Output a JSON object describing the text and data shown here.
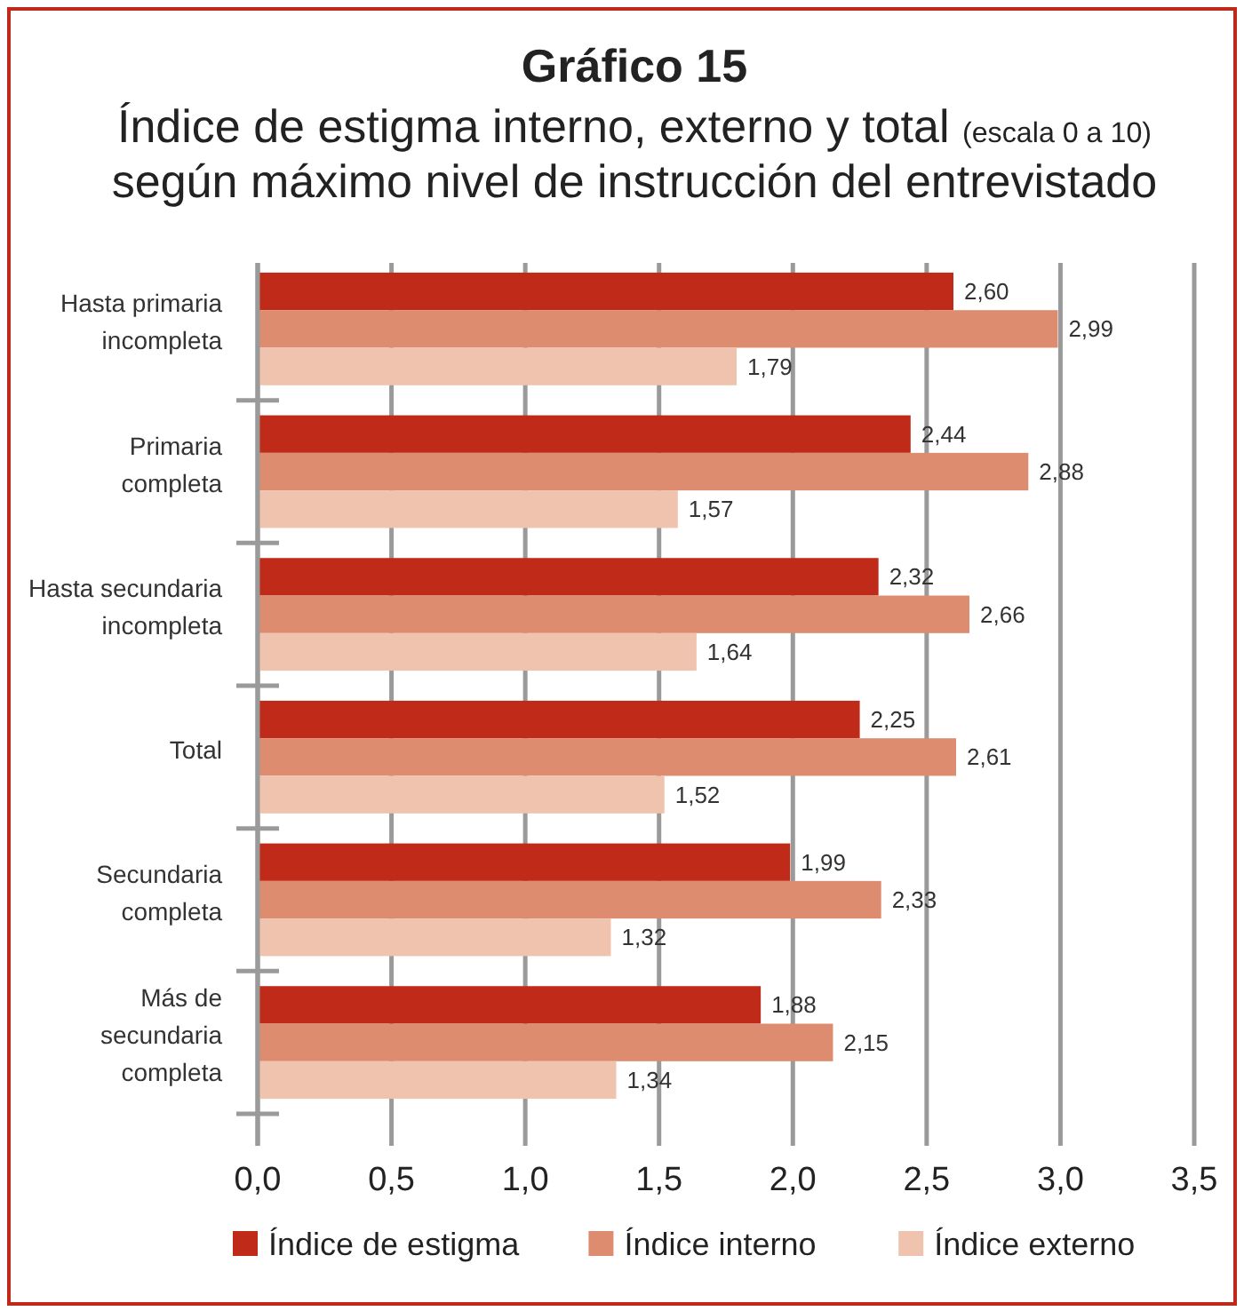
{
  "chart_data": {
    "type": "bar",
    "orientation": "horizontal",
    "title": "Gráfico 15",
    "subtitle": "Índice de estigma interno, externo y total (escala 0 a 10) según máximo nivel de instrucción del entrevistado",
    "categories": [
      "Hasta primaria incompleta",
      "Primaria completa",
      "Hasta secundaria incompleta",
      "Total",
      "Secundaria completa",
      "Más de secundaria completa"
    ],
    "series": [
      {
        "name": "Índice de estigma",
        "color": "#bf2a19",
        "values": [
          2.6,
          2.44,
          2.32,
          2.25,
          1.99,
          1.88
        ],
        "value_labels": [
          "2,60",
          "2,44",
          "2,32",
          "2,25",
          "1,99",
          "1,88"
        ]
      },
      {
        "name": "Índice interno",
        "color": "#de8c6f",
        "values": [
          2.99,
          2.88,
          2.66,
          2.61,
          2.33,
          2.15
        ],
        "value_labels": [
          "2,99",
          "2,88",
          "2,66",
          "2,61",
          "2,33",
          "2,15"
        ]
      },
      {
        "name": "Índice externo",
        "color": "#efc3ad",
        "values": [
          1.79,
          1.57,
          1.64,
          1.52,
          1.32,
          1.34
        ],
        "value_labels": [
          "1,79",
          "1,57",
          "1,64",
          "1,52",
          "1,32",
          "1,34"
        ]
      }
    ],
    "xlim": [
      0,
      3.5
    ],
    "xticks": [
      {
        "value": 0,
        "label": "0,0"
      },
      {
        "value": 0.5,
        "label": "0,5"
      },
      {
        "value": 1,
        "label": "1,0"
      },
      {
        "value": 1.5,
        "label": "1,5"
      },
      {
        "value": 2,
        "label": "2,0"
      },
      {
        "value": 2.5,
        "label": "2,5"
      },
      {
        "value": 3,
        "label": "3,0"
      },
      {
        "value": 3.5,
        "label": "3,5"
      }
    ],
    "grid": "x",
    "legend": "bottom"
  }
}
